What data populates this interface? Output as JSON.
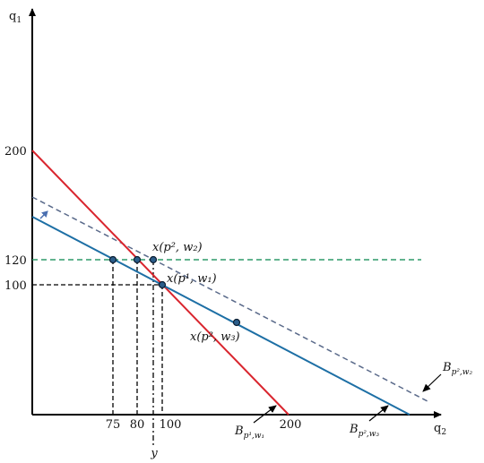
{
  "axes": {
    "y_label": {
      "base": "q",
      "sub": "1"
    },
    "x_label": {
      "base": "q",
      "sub": "2"
    }
  },
  "y_ticks": [
    "200",
    "120",
    "100"
  ],
  "x_ticks": [
    "75",
    "80",
    "100",
    "200"
  ],
  "y_marker": "y",
  "points": [
    "x(p², w₂)",
    "x(p¹, w₁)",
    "x(p², w₃)"
  ],
  "budget_lines": [
    {
      "base": "B",
      "sub": "p¹,w₁"
    },
    {
      "base": "B",
      "sub": "p²,w₃"
    },
    {
      "base": "B",
      "sub": "p²,w₂"
    }
  ]
}
